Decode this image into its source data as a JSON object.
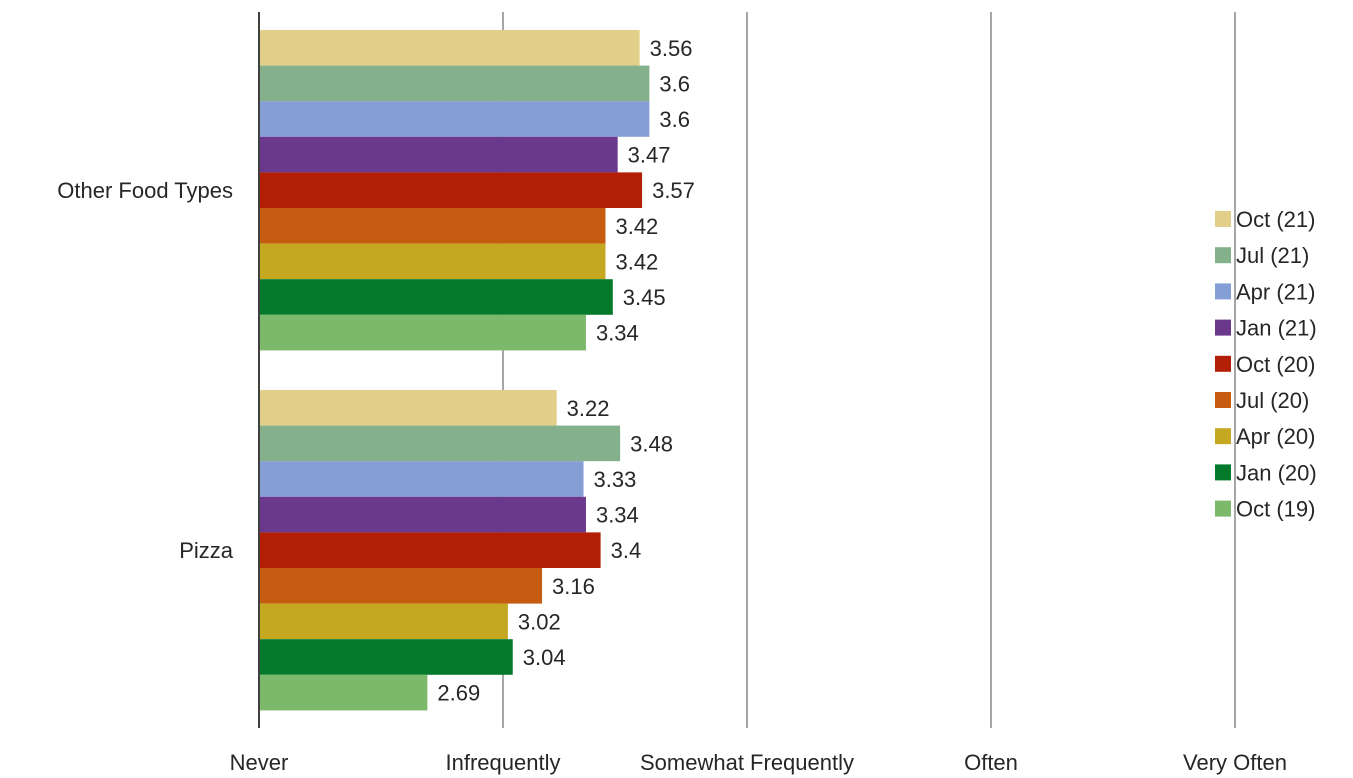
{
  "chart_data": {
    "type": "bar",
    "orientation": "horizontal",
    "categories": [
      "Other Food Types",
      "Pizza"
    ],
    "x_tick_labels": [
      "Never",
      "Infrequently",
      "Somewhat Frequently",
      "Often",
      "Very Often"
    ],
    "xlim": [
      2,
      6
    ],
    "xlabel": "",
    "ylabel": "",
    "grid": "vertical",
    "legend_position": "right",
    "series": [
      {
        "name": "Oct (21)",
        "color": "#E2CF8A",
        "values": [
          3.56,
          3.22
        ]
      },
      {
        "name": "Jul (21)",
        "color": "#84B08B",
        "values": [
          3.6,
          3.48
        ]
      },
      {
        "name": "Apr (21)",
        "color": "#859ED5",
        "values": [
          3.6,
          3.33
        ]
      },
      {
        "name": "Jan (21)",
        "color": "#6A398D",
        "values": [
          3.47,
          3.34
        ]
      },
      {
        "name": "Oct (20)",
        "color": "#B21F06",
        "values": [
          3.57,
          3.4
        ]
      },
      {
        "name": "Jul (20)",
        "color": "#C55C11",
        "values": [
          3.42,
          3.16
        ]
      },
      {
        "name": "Apr (20)",
        "color": "#C4A822",
        "values": [
          3.42,
          3.02
        ]
      },
      {
        "name": "Jan (20)",
        "color": "#037A2B",
        "values": [
          3.45,
          3.04
        ]
      },
      {
        "name": "Oct (19)",
        "color": "#7DB96A",
        "values": [
          3.34,
          2.69
        ]
      }
    ]
  }
}
